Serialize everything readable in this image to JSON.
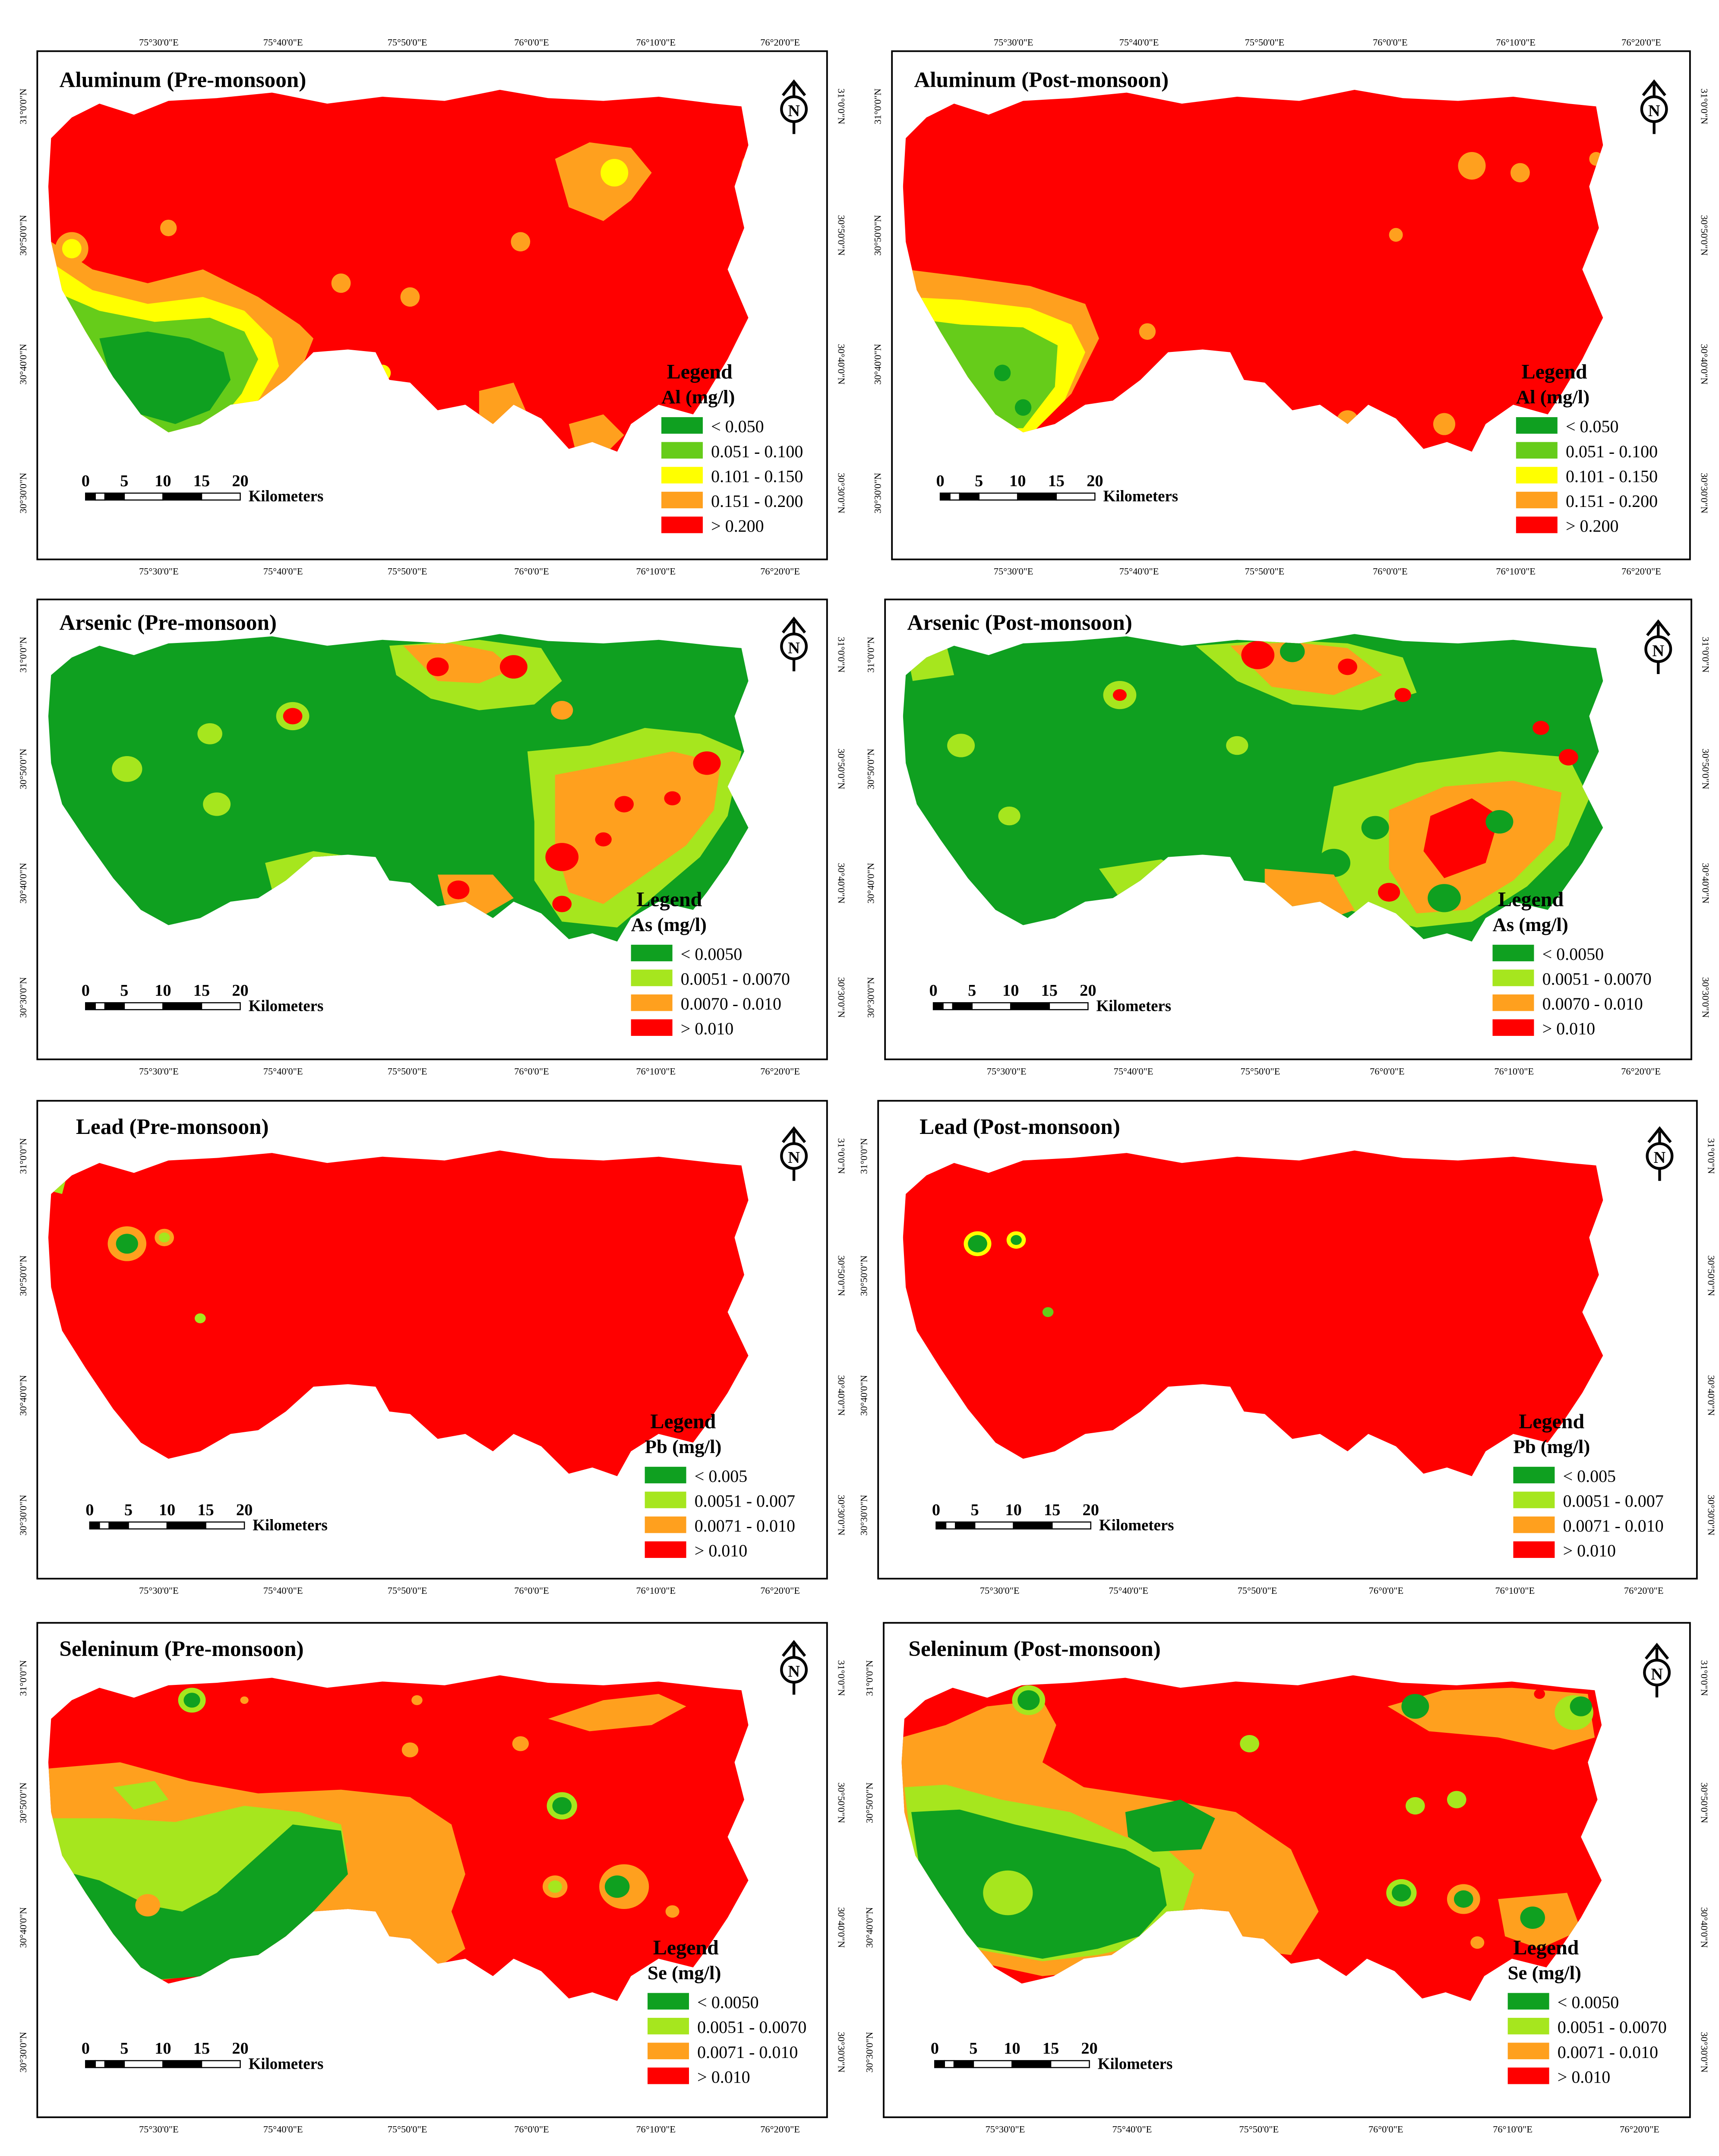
{
  "colors": {
    "dark_green": "#0fa020",
    "light_green": "#66cc1a",
    "yellow_green": "#a6e61e",
    "yellow": "#ffff00",
    "orange": "#ffa01e",
    "red": "#ff0000",
    "frame": "#000000"
  },
  "axes": {
    "lon_ticks": [
      "75°30'0\"E",
      "75°40'0\"E",
      "75°50'0\"E",
      "76°0'0\"E",
      "76°10'0\"E",
      "76°20'0\"E"
    ],
    "lat_ticks": [
      "31°0'0\"N",
      "30°50'0\"N",
      "30°40'0\"N",
      "30°30'0\"N"
    ]
  },
  "north_arrow_label": "N",
  "scale_bar": {
    "ticks": [
      "0",
      "5",
      "10",
      "15",
      "20"
    ],
    "unit": "Kilometers"
  },
  "panels": [
    {
      "id": "al-pre",
      "title": "Aluminum (Pre-monsoon)",
      "legend_title": "Legend",
      "legend_unit": "Al (mg/l)",
      "base_color": "red",
      "classes": [
        {
          "label": "< 0.050",
          "color": "dark_green"
        },
        {
          "label": "0.051 - 0.100",
          "color": "light_green"
        },
        {
          "label": "0.101 - 0.150",
          "color": "yellow"
        },
        {
          "label": "0.151 - 0.200",
          "color": "orange"
        },
        {
          "label": "> 0.200",
          "color": "red"
        }
      ]
    },
    {
      "id": "al-post",
      "title": "Aluminum (Post-monsoon)",
      "legend_title": "Legend",
      "legend_unit": "Al (mg/l)",
      "base_color": "red",
      "classes": [
        {
          "label": "< 0.050",
          "color": "dark_green"
        },
        {
          "label": "0.051 - 0.100",
          "color": "light_green"
        },
        {
          "label": "0.101 - 0.150",
          "color": "yellow"
        },
        {
          "label": "0.151 - 0.200",
          "color": "orange"
        },
        {
          "label": "> 0.200",
          "color": "red"
        }
      ]
    },
    {
      "id": "as-pre",
      "title": "Arsenic (Pre-monsoon)",
      "legend_title": "Legend",
      "legend_unit": "As (mg/l)",
      "base_color": "dark_green",
      "classes": [
        {
          "label": "< 0.0050",
          "color": "dark_green"
        },
        {
          "label": "0.0051 - 0.0070",
          "color": "yellow_green"
        },
        {
          "label": "0.0070 - 0.010",
          "color": "orange"
        },
        {
          "label": "> 0.010",
          "color": "red"
        }
      ]
    },
    {
      "id": "as-post",
      "title": "Arsenic (Post-monsoon)",
      "legend_title": "Legend",
      "legend_unit": "As (mg/l)",
      "base_color": "dark_green",
      "classes": [
        {
          "label": "< 0.0050",
          "color": "dark_green"
        },
        {
          "label": "0.0051 - 0.0070",
          "color": "yellow_green"
        },
        {
          "label": "0.0070 - 0.010",
          "color": "orange"
        },
        {
          "label": "> 0.010",
          "color": "red"
        }
      ]
    },
    {
      "id": "pb-pre",
      "title": "Lead (Pre-monsoon)",
      "legend_title": "Legend",
      "legend_unit": "Pb (mg/l)",
      "base_color": "red",
      "classes": [
        {
          "label": "< 0.005",
          "color": "dark_green"
        },
        {
          "label": "0.0051 - 0.007",
          "color": "yellow_green"
        },
        {
          "label": "0.0071 - 0.010",
          "color": "orange"
        },
        {
          "label": "> 0.010",
          "color": "red"
        }
      ]
    },
    {
      "id": "pb-post",
      "title": "Lead (Post-monsoon)",
      "legend_title": "Legend",
      "legend_unit": "Pb (mg/l)",
      "base_color": "red",
      "classes": [
        {
          "label": "< 0.005",
          "color": "dark_green"
        },
        {
          "label": "0.0051 - 0.007",
          "color": "yellow_green"
        },
        {
          "label": "0.0071 - 0.010",
          "color": "orange"
        },
        {
          "label": "> 0.010",
          "color": "red"
        }
      ]
    },
    {
      "id": "se-pre",
      "title": "Seleninum (Pre-monsoon)",
      "legend_title": "Legend",
      "legend_unit": "Se (mg/l)",
      "base_color": "red",
      "classes": [
        {
          "label": "< 0.0050",
          "color": "dark_green"
        },
        {
          "label": "0.0051 - 0.0070",
          "color": "yellow_green"
        },
        {
          "label": "0.0071 - 0.010",
          "color": "orange"
        },
        {
          "label": "> 0.010",
          "color": "red"
        }
      ]
    },
    {
      "id": "se-post",
      "title": "Seleninum (Post-monsoon)",
      "legend_title": "Legend",
      "legend_unit": "Se (mg/l)",
      "base_color": "red",
      "classes": [
        {
          "label": "< 0.0050",
          "color": "dark_green"
        },
        {
          "label": "0.0051 - 0.0070",
          "color": "yellow_green"
        },
        {
          "label": "0.0071 - 0.010",
          "color": "orange"
        },
        {
          "label": "> 0.010",
          "color": "red"
        }
      ]
    }
  ]
}
